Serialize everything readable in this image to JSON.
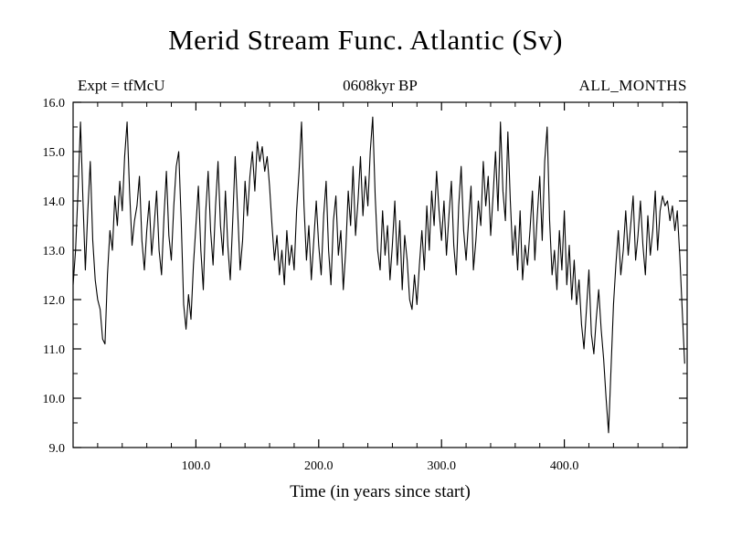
{
  "chart_data": {
    "type": "line",
    "title": "Merid Stream Func. Atlantic (Sv)",
    "annotations": {
      "left": "Expt = tfMcU",
      "center": "0608kyr BP",
      "right": "ALL_MONTHS"
    },
    "xlabel": "Time (in years since start)",
    "ylabel": "",
    "xlim": [
      0,
      500
    ],
    "ylim": [
      9.0,
      16.0
    ],
    "x_ticks": [
      100,
      200,
      300,
      400
    ],
    "x_tick_labels": [
      "100.0",
      "200.0",
      "300.0",
      "400.0"
    ],
    "x_minor_step": 20,
    "y_ticks": [
      9,
      10,
      11,
      12,
      13,
      14,
      15,
      16
    ],
    "y_tick_labels": [
      "9.0",
      "10.0",
      "11.0",
      "12.0",
      "13.0",
      "14.0",
      "15.0",
      "16.0"
    ],
    "y_minor_step": 0.5,
    "grid": false,
    "legend_position": "none",
    "line_color": "#000000",
    "series": [
      {
        "name": "Meridional stream function",
        "x_start": 0,
        "x_step": 2,
        "values": [
          12.3,
          13.0,
          14.2,
          15.6,
          14.0,
          12.6,
          13.8,
          14.8,
          13.2,
          12.4,
          12.0,
          11.8,
          11.2,
          11.1,
          12.5,
          13.4,
          13.0,
          14.1,
          13.5,
          14.4,
          13.8,
          14.9,
          15.6,
          14.2,
          13.1,
          13.6,
          13.9,
          14.5,
          13.2,
          12.6,
          13.4,
          14.0,
          12.9,
          13.5,
          14.2,
          13.0,
          12.5,
          13.7,
          14.6,
          13.3,
          12.8,
          13.9,
          14.7,
          15.0,
          13.6,
          11.9,
          11.4,
          12.1,
          11.6,
          12.7,
          13.5,
          14.3,
          13.0,
          12.2,
          13.8,
          14.6,
          13.4,
          12.7,
          13.9,
          14.8,
          13.5,
          12.9,
          14.2,
          13.1,
          12.4,
          13.6,
          14.9,
          13.8,
          12.6,
          13.2,
          14.4,
          13.7,
          14.5,
          15.0,
          14.2,
          15.2,
          14.8,
          15.1,
          14.6,
          14.9,
          14.3,
          13.5,
          12.8,
          13.3,
          12.5,
          13.0,
          12.3,
          13.4,
          12.7,
          13.1,
          12.6,
          13.8,
          14.6,
          15.6,
          13.9,
          12.8,
          13.5,
          12.4,
          13.2,
          14.0,
          13.1,
          12.5,
          13.7,
          14.4,
          13.0,
          12.3,
          13.6,
          14.1,
          12.9,
          13.4,
          12.2,
          13.0,
          14.2,
          13.5,
          14.7,
          13.3,
          14.0,
          14.9,
          13.7,
          14.5,
          13.9,
          15.0,
          15.7,
          14.1,
          13.0,
          12.6,
          13.8,
          12.9,
          13.5,
          12.4,
          13.1,
          14.0,
          12.7,
          13.6,
          12.2,
          13.3,
          12.8,
          12.0,
          11.8,
          12.5,
          11.9,
          12.7,
          13.4,
          12.6,
          13.9,
          13.0,
          14.2,
          13.5,
          14.6,
          13.8,
          13.2,
          14.0,
          12.9,
          13.7,
          14.4,
          13.1,
          12.5,
          13.9,
          14.7,
          13.4,
          12.8,
          13.6,
          14.3,
          12.6,
          13.2,
          14.0,
          13.5,
          14.8,
          13.9,
          14.5,
          13.3,
          14.1,
          15.0,
          13.8,
          15.6,
          14.2,
          13.6,
          15.4,
          14.0,
          12.9,
          13.5,
          12.6,
          13.8,
          12.4,
          13.1,
          12.7,
          13.4,
          14.2,
          12.8,
          13.7,
          14.5,
          13.2,
          14.8,
          15.5,
          13.6,
          12.5,
          13.0,
          12.2,
          13.4,
          12.6,
          13.8,
          12.3,
          13.1,
          12.0,
          12.8,
          11.9,
          12.4,
          11.5,
          11.0,
          11.8,
          12.6,
          11.3,
          10.9,
          11.6,
          12.2,
          11.4,
          10.8,
          10.0,
          9.3,
          10.6,
          11.9,
          12.7,
          13.4,
          12.5,
          13.0,
          13.8,
          12.9,
          13.5,
          14.1,
          12.8,
          13.3,
          14.0,
          13.1,
          12.5,
          13.7,
          12.9,
          13.4,
          14.2,
          13.0,
          13.8,
          14.1,
          13.9,
          14.0,
          13.6,
          13.9,
          13.4,
          13.8,
          12.9,
          11.8,
          10.7
        ]
      }
    ]
  }
}
